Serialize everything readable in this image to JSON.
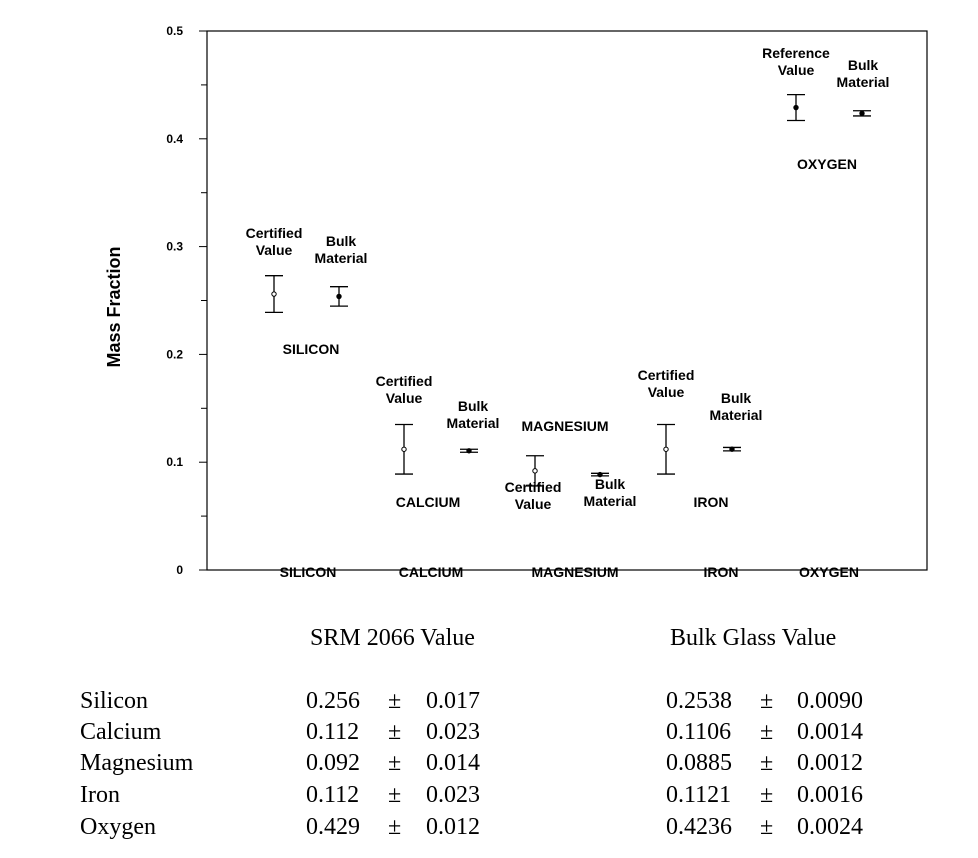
{
  "chart_data": {
    "type": "scatter",
    "ylabel": "Mass Fraction",
    "ylim": [
      0,
      0.5
    ],
    "yticks": [
      "0",
      "0.1",
      "0.2",
      "0.3",
      "0.4",
      "0.5"
    ],
    "categories": [
      "SILICON",
      "CALCIUM",
      "MAGNESIUM",
      "IRON",
      "OXYGEN"
    ],
    "series": [
      {
        "name": "Certified Value",
        "values": [
          0.256,
          0.112,
          0.092,
          0.112,
          0.429
        ],
        "errors": [
          0.017,
          0.023,
          0.014,
          0.023,
          0.012
        ]
      },
      {
        "name": "Bulk Material",
        "values": [
          0.2538,
          0.1106,
          0.0885,
          0.1121,
          0.4236
        ],
        "errors": [
          0.009,
          0.0014,
          0.0012,
          0.0016,
          0.0024
        ]
      }
    ],
    "annotations": [
      {
        "lines": [
          "Certified",
          "Value"
        ]
      },
      {
        "lines": [
          "Bulk",
          "Material"
        ]
      },
      {
        "lines": [
          "SILICON"
        ]
      },
      {
        "lines": [
          "Certified",
          "Value"
        ]
      },
      {
        "lines": [
          "Bulk",
          "Material"
        ]
      },
      {
        "lines": [
          "CALCIUM"
        ]
      },
      {
        "lines": [
          "MAGNESIUM"
        ]
      },
      {
        "lines": [
          "Certified",
          "Value"
        ]
      },
      {
        "lines": [
          "Bulk",
          "Material"
        ]
      },
      {
        "lines": [
          "Certified",
          "Value"
        ]
      },
      {
        "lines": [
          "Bulk",
          "Material"
        ]
      },
      {
        "lines": [
          "IRON"
        ]
      },
      {
        "lines": [
          "Reference",
          "Value"
        ]
      },
      {
        "lines": [
          "Bulk",
          "Material"
        ]
      },
      {
        "lines": [
          "OXYGEN"
        ]
      }
    ]
  },
  "table": {
    "header_srm": "SRM 2066 Value",
    "header_bulk": "Bulk Glass Value",
    "pm": "±",
    "rows": [
      {
        "name": "Silicon",
        "srm": "0.256",
        "srm_unc": "0.017",
        "bulk": "0.2538",
        "bulk_unc": "0.0090"
      },
      {
        "name": "Calcium",
        "srm": "0.112",
        "srm_unc": "0.023",
        "bulk": "0.1106",
        "bulk_unc": "0.0014"
      },
      {
        "name": "Magnesium",
        "srm": "0.092",
        "srm_unc": "0.014",
        "bulk": "0.0885",
        "bulk_unc": "0.0012"
      },
      {
        "name": "Iron",
        "srm": "0.112",
        "srm_unc": "0.023",
        "bulk": "0.1121",
        "bulk_unc": "0.0016"
      },
      {
        "name": "Oxygen",
        "srm": "0.429",
        "srm_unc": "0.012",
        "bulk": "0.4236",
        "bulk_unc": "0.0024"
      }
    ]
  }
}
